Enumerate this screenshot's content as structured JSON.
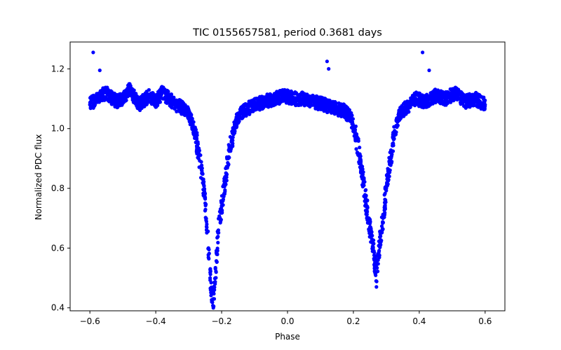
{
  "chart_data": {
    "type": "scatter",
    "title": "TIC 0155657581, period 0.3681 days",
    "xlabel": "Phase",
    "ylabel": "Normalized PDC flux",
    "xlim": [
      -0.66,
      0.66
    ],
    "ylim": [
      0.39,
      1.29
    ],
    "x_ticks": [
      -0.6,
      -0.4,
      -0.2,
      0.0,
      0.2,
      0.4,
      0.6
    ],
    "x_tick_labels": [
      "−0.6",
      "−0.4",
      "−0.2",
      "0.0",
      "0.2",
      "0.4",
      "0.6"
    ],
    "y_ticks": [
      0.4,
      0.6,
      0.8,
      1.0,
      1.2
    ],
    "y_tick_labels": [
      "0.4",
      "0.6",
      "0.8",
      "1.0",
      "1.2"
    ],
    "grid": false,
    "legend": null,
    "marker_color": "#0000ff",
    "series": [
      {
        "points": [
          [
            -0.6,
            1.08
          ],
          [
            -0.58,
            1.1
          ],
          [
            -0.55,
            1.12
          ],
          [
            -0.52,
            1.09
          ],
          [
            -0.5,
            1.1
          ],
          [
            -0.48,
            1.13
          ],
          [
            -0.45,
            1.08
          ],
          [
            -0.42,
            1.11
          ],
          [
            -0.4,
            1.09
          ],
          [
            -0.38,
            1.12
          ],
          [
            -0.36,
            1.1
          ],
          [
            -0.34,
            1.08
          ],
          [
            -0.32,
            1.07
          ],
          [
            -0.3,
            1.05
          ],
          [
            -0.29,
            1.02
          ],
          [
            -0.28,
            0.98
          ],
          [
            -0.27,
            0.92
          ],
          [
            -0.26,
            0.85
          ],
          [
            -0.25,
            0.75
          ],
          [
            -0.245,
            0.68
          ],
          [
            -0.24,
            0.6
          ],
          [
            -0.235,
            0.5
          ],
          [
            -0.23,
            0.45
          ],
          [
            -0.225,
            0.43
          ],
          [
            -0.22,
            0.48
          ],
          [
            -0.215,
            0.58
          ],
          [
            -0.21,
            0.66
          ],
          [
            -0.2,
            0.74
          ],
          [
            -0.19,
            0.82
          ],
          [
            -0.18,
            0.9
          ],
          [
            -0.17,
            0.96
          ],
          [
            -0.16,
            1.01
          ],
          [
            -0.15,
            1.04
          ],
          [
            -0.13,
            1.06
          ],
          [
            -0.1,
            1.08
          ],
          [
            -0.07,
            1.09
          ],
          [
            -0.04,
            1.1
          ],
          [
            -0.01,
            1.11
          ],
          [
            0.02,
            1.1
          ],
          [
            0.05,
            1.1
          ],
          [
            0.08,
            1.09
          ],
          [
            0.11,
            1.08
          ],
          [
            0.14,
            1.07
          ],
          [
            0.17,
            1.06
          ],
          [
            0.19,
            1.04
          ],
          [
            0.2,
            1.01
          ],
          [
            0.21,
            0.96
          ],
          [
            0.22,
            0.9
          ],
          [
            0.23,
            0.82
          ],
          [
            0.24,
            0.74
          ],
          [
            0.25,
            0.67
          ],
          [
            0.26,
            0.6
          ],
          [
            0.265,
            0.55
          ],
          [
            0.27,
            0.52
          ],
          [
            0.275,
            0.56
          ],
          [
            0.28,
            0.62
          ],
          [
            0.29,
            0.7
          ],
          [
            0.3,
            0.8
          ],
          [
            0.31,
            0.88
          ],
          [
            0.32,
            0.95
          ],
          [
            0.33,
            1.01
          ],
          [
            0.34,
            1.05
          ],
          [
            0.36,
            1.07
          ],
          [
            0.39,
            1.1
          ],
          [
            0.42,
            1.09
          ],
          [
            0.45,
            1.11
          ],
          [
            0.48,
            1.1
          ],
          [
            0.51,
            1.12
          ],
          [
            0.54,
            1.09
          ],
          [
            0.57,
            1.1
          ],
          [
            0.6,
            1.08
          ]
        ]
      }
    ],
    "outliers": [
      [
        -0.59,
        1.255
      ],
      [
        -0.57,
        1.195
      ],
      [
        0.12,
        1.225
      ],
      [
        0.125,
        1.2
      ],
      [
        0.41,
        1.255
      ],
      [
        0.43,
        1.195
      ],
      [
        -0.23,
        0.42
      ],
      [
        0.27,
        0.47
      ]
    ]
  }
}
